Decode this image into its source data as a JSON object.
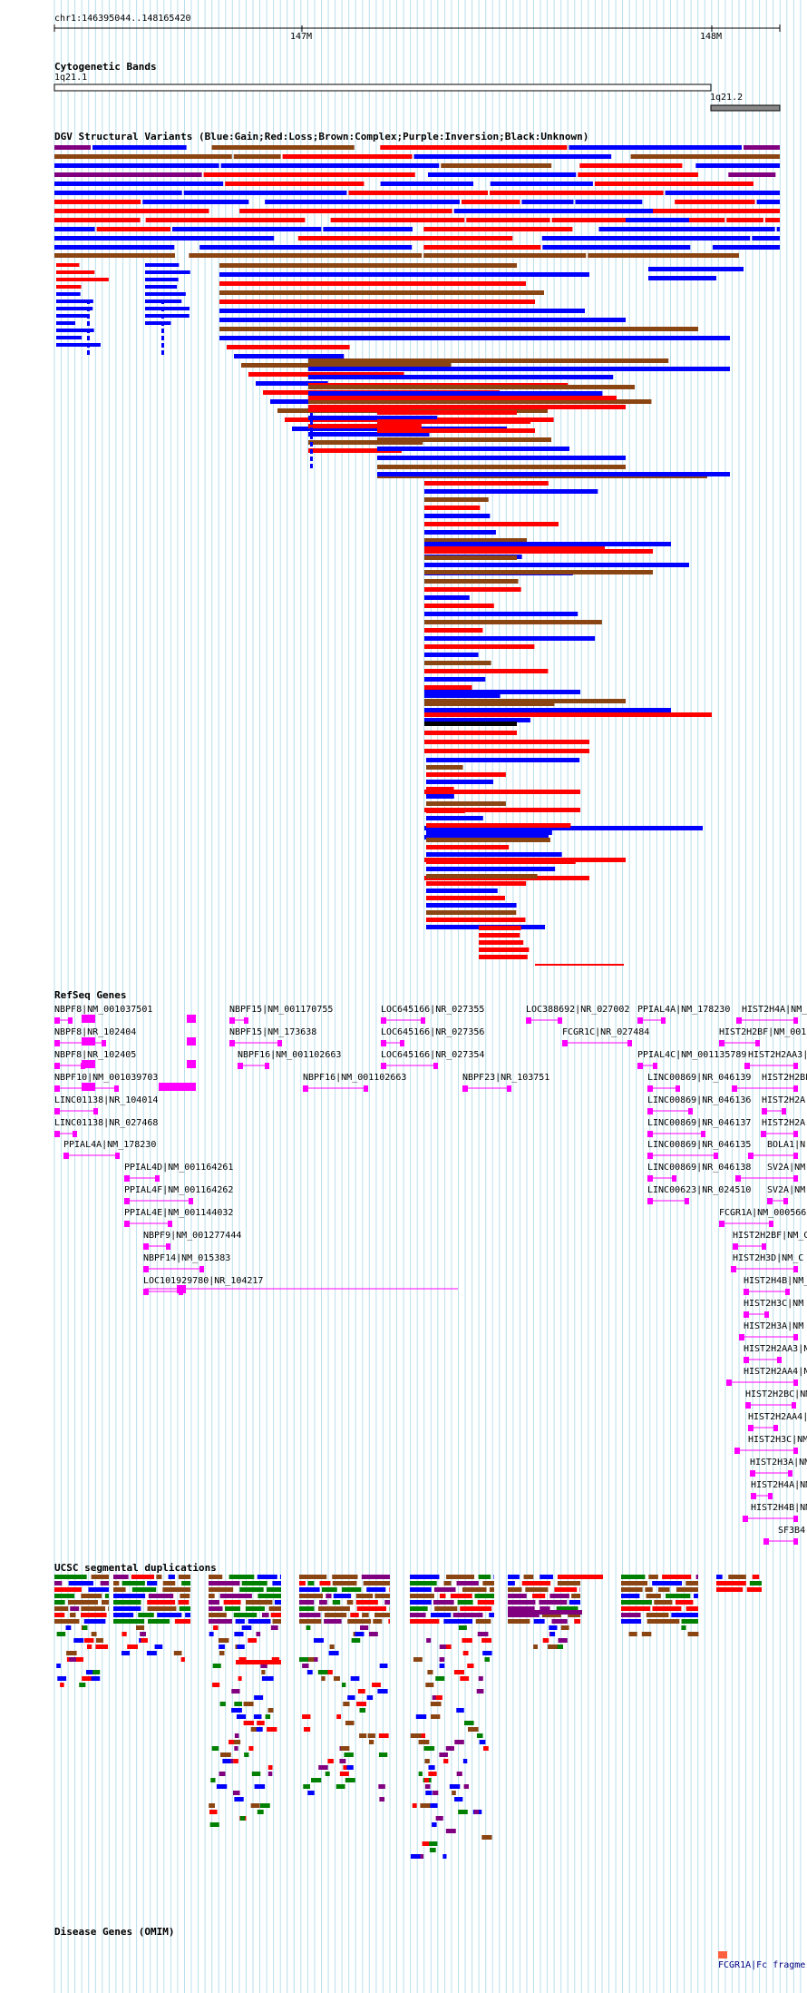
{
  "header": {
    "coords": "chr1:146395044..148165420"
  },
  "ruler": {
    "ticks": [
      "147M",
      "148M"
    ]
  },
  "tracks": {
    "cytoband": {
      "title": "Cytogenetic Bands",
      "bands": [
        "1q21.1",
        "1q21.2"
      ]
    },
    "dgv": {
      "title": "DGV Structural Variants (Blue:Gain;Red:Loss;Brown:Complex;Purple:Inversion;Black:Unknown)"
    },
    "refseq": {
      "title": "RefSeq Genes",
      "labels": [
        "NBPF8|NM_001037501",
        "NBPF8|NR_102404",
        "NBPF8|NR_102405",
        "NBPF10|NM_001039703",
        "LINC01138|NR_104014",
        "LINC01138|NR_027468",
        "PPIAL4A|NM_178230",
        "PPIAL4D|NM_001164261",
        "PPIAL4F|NM_001164262",
        "PPIAL4E|NM_001144032",
        "NBPF9|NM_001277444",
        "NBPF14|NM_015383",
        "LOC101929780|NR_104217",
        "NBPF15|NM_001170755",
        "NBPF15|NM_173638",
        "NBPF16|NM_001102663",
        "NBPF16|NM_001102663",
        "LOC645166|NR_027355",
        "LOC645166|NR_027356",
        "LOC645166|NR_027354",
        "LOC388692|NR_027002",
        "FCGR1C|NR_027484",
        "NBPF23|NR_103751",
        "PPIAL4A|NM_178230",
        "HIST2H4A|NM_",
        "HIST2H2BF|NM_001",
        "PPIAL4C|NM_001135789",
        "HIST2H2AA3|",
        "LINC00869|NR_046139",
        "HIST2H2BE",
        "LINC00869|NR_046136",
        "HIST2H2A",
        "LINC00869|NR_046137",
        "HIST2H2A",
        "LINC00869|NR_046135",
        "BOLA1|N",
        "LINC00869|NR_046138",
        "SV2A|NM",
        "LINC00623|NR_024510",
        "SV2A|NM",
        "FCGR1A|NM_000566",
        "HIST2H2BF|NM_C",
        "HIST2H3D|NM_C",
        "HIST2H4B|NM_C",
        "HIST2H3C|NM",
        "HIST2H3A|NM",
        "HIST2H2AA3|N",
        "HIST2H2AA4|N",
        "HIST2H2BC|NM",
        "HIST2H2AA4|",
        "HIST2H3C|NM",
        "HIST2H3A|NM",
        "HIST2H4A|NM",
        "HIST2H4B|NM",
        "SF3B4"
      ]
    },
    "segdup": {
      "title": "UCSC segmental duplications"
    },
    "omim": {
      "title": "Disease Genes (OMIM)",
      "labels": [
        "FCGR1A|Fc fragme"
      ]
    }
  },
  "colors": {
    "gain": "#0000ff",
    "loss": "#ff0000",
    "complex": "#8b4513",
    "inversion": "#800080",
    "unknown": "#000000",
    "gene": "#ff00ff",
    "grid": "#a8d8e8",
    "segdup_green": "#008000"
  }
}
